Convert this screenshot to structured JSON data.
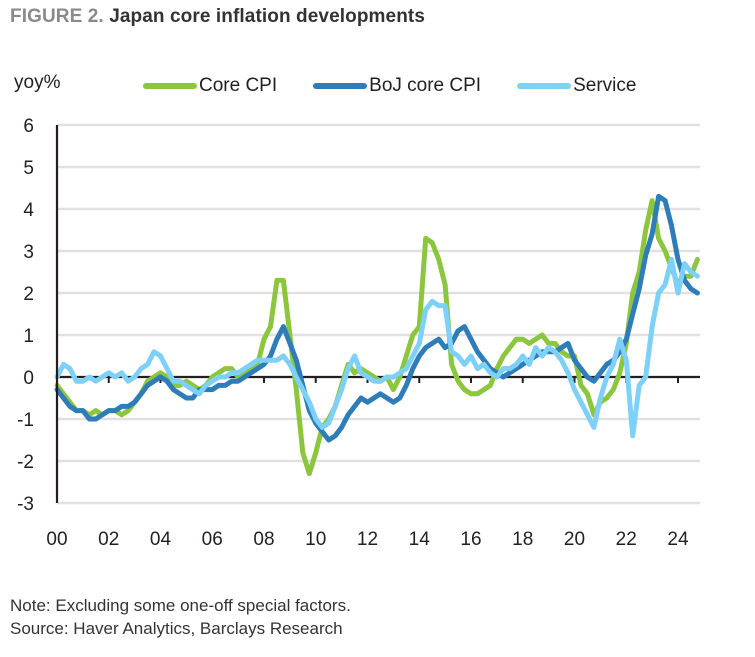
{
  "header": {
    "figure_label": "FIGURE 2.",
    "title": "Japan core inflation developments"
  },
  "notes": {
    "note": "Note: Excluding some one-off special factors.",
    "source": "Source: Haver Analytics, Barclays Research"
  },
  "chart_data": {
    "type": "line",
    "title": "Japan core inflation developments",
    "xlabel": "",
    "ylabel": "yoy%",
    "x_start": 2000.0,
    "x_step": 0.25,
    "xlim": [
      2000,
      2025
    ],
    "ylim": [
      -3,
      6
    ],
    "yticks": [
      6,
      5,
      4,
      3,
      2,
      1,
      0,
      -1,
      -2,
      -3
    ],
    "xtick_values": [
      2000,
      2002,
      2004,
      2006,
      2008,
      2010,
      2012,
      2014,
      2016,
      2018,
      2020,
      2022,
      2024
    ],
    "xtick_labels": [
      "00",
      "02",
      "04",
      "06",
      "08",
      "10",
      "12",
      "14",
      "16",
      "18",
      "20",
      "22",
      "24"
    ],
    "grid": true,
    "legend_position": "top",
    "series": [
      {
        "name": "Core CPI",
        "color": "#8cc63f",
        "values": [
          -0.2,
          -0.4,
          -0.6,
          -0.8,
          -0.8,
          -0.9,
          -0.8,
          -0.9,
          -0.8,
          -0.8,
          -0.9,
          -0.8,
          -0.6,
          -0.4,
          -0.1,
          0.0,
          0.1,
          0.0,
          -0.2,
          -0.2,
          -0.1,
          -0.2,
          -0.3,
          -0.2,
          0.0,
          0.1,
          0.2,
          0.2,
          0.0,
          0.1,
          0.2,
          0.3,
          0.9,
          1.2,
          2.3,
          2.3,
          1.0,
          -0.3,
          -1.8,
          -2.3,
          -1.8,
          -1.2,
          -1.0,
          -0.7,
          -0.2,
          0.3,
          0.1,
          0.2,
          0.1,
          0.0,
          -0.1,
          0.0,
          -0.3,
          0.0,
          0.5,
          1.0,
          1.2,
          3.3,
          3.2,
          2.8,
          2.2,
          0.3,
          -0.1,
          -0.3,
          -0.4,
          -0.4,
          -0.3,
          -0.2,
          0.2,
          0.5,
          0.7,
          0.9,
          0.9,
          0.8,
          0.9,
          1.0,
          0.8,
          0.8,
          0.6,
          0.5,
          0.5,
          -0.2,
          -0.4,
          -0.9,
          -0.6,
          -0.5,
          -0.3,
          0.1,
          0.8,
          2.0,
          2.5,
          3.5,
          4.2,
          3.3,
          3.0,
          2.6,
          2.2,
          2.4,
          2.4,
          2.8
        ]
      },
      {
        "name": "BoJ core CPI",
        "color": "#2e7db8",
        "values": [
          -0.3,
          -0.5,
          -0.7,
          -0.8,
          -0.8,
          -1.0,
          -1.0,
          -0.9,
          -0.8,
          -0.8,
          -0.7,
          -0.7,
          -0.6,
          -0.4,
          -0.2,
          -0.1,
          0.0,
          -0.1,
          -0.3,
          -0.4,
          -0.5,
          -0.5,
          -0.3,
          -0.3,
          -0.3,
          -0.2,
          -0.2,
          -0.1,
          -0.1,
          0.0,
          0.1,
          0.2,
          0.3,
          0.5,
          0.9,
          1.2,
          0.8,
          0.4,
          -0.2,
          -0.8,
          -1.1,
          -1.3,
          -1.5,
          -1.4,
          -1.2,
          -0.9,
          -0.7,
          -0.5,
          -0.6,
          -0.5,
          -0.4,
          -0.5,
          -0.6,
          -0.5,
          -0.2,
          0.2,
          0.5,
          0.7,
          0.8,
          0.9,
          0.7,
          0.8,
          1.1,
          1.2,
          0.9,
          0.6,
          0.4,
          0.2,
          0.1,
          0.0,
          0.1,
          0.2,
          0.3,
          0.4,
          0.5,
          0.6,
          0.6,
          0.6,
          0.7,
          0.8,
          0.4,
          0.2,
          0.0,
          -0.1,
          0.1,
          0.3,
          0.4,
          0.6,
          0.9,
          1.5,
          2.1,
          2.9,
          3.4,
          4.3,
          4.2,
          3.6,
          2.8,
          2.3,
          2.1,
          2.0
        ]
      },
      {
        "name": "Service",
        "color": "#7dd0f7",
        "values": [
          0.0,
          0.3,
          0.2,
          -0.1,
          -0.1,
          0.0,
          -0.1,
          0.0,
          0.1,
          0.0,
          0.1,
          -0.1,
          0.0,
          0.2,
          0.3,
          0.6,
          0.5,
          0.2,
          -0.1,
          -0.1,
          -0.2,
          -0.3,
          -0.4,
          -0.2,
          -0.1,
          0.0,
          0.0,
          0.1,
          0.1,
          0.2,
          0.3,
          0.4,
          0.4,
          0.4,
          0.4,
          0.5,
          0.3,
          0.0,
          -0.3,
          -0.6,
          -1.0,
          -1.2,
          -1.1,
          -0.7,
          -0.3,
          0.2,
          0.5,
          0.1,
          0.0,
          -0.1,
          -0.1,
          0.0,
          0.0,
          0.1,
          0.2,
          0.5,
          0.8,
          1.6,
          1.8,
          1.7,
          1.7,
          0.6,
          0.5,
          0.3,
          0.5,
          0.2,
          0.3,
          0.1,
          0.0,
          0.2,
          0.2,
          0.3,
          0.5,
          0.3,
          0.7,
          0.5,
          0.7,
          0.6,
          0.4,
          0.1,
          -0.3,
          -0.6,
          -0.9,
          -1.2,
          -0.5,
          0.0,
          0.3,
          0.9,
          0.4,
          -1.4,
          -0.2,
          0.0,
          1.2,
          2.0,
          2.2,
          2.8,
          2.0,
          2.7,
          2.5,
          2.4
        ]
      }
    ]
  }
}
